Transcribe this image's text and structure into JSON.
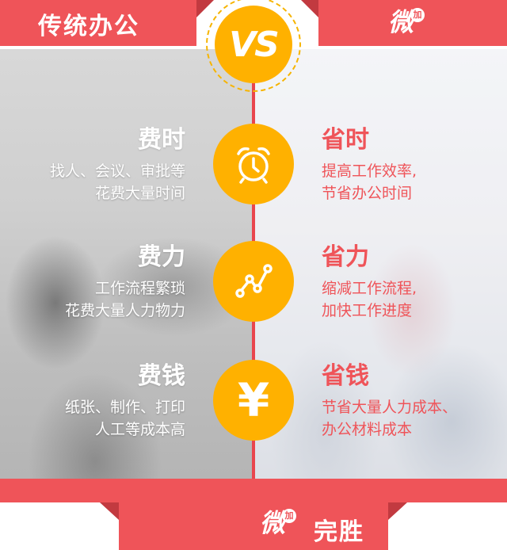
{
  "header": {
    "left_title": "传统办公",
    "vs_text": "VS",
    "right_logo": {
      "main": "微",
      "badge": "加"
    }
  },
  "rows": [
    {
      "left": {
        "title": "费时",
        "lines": [
          "找人、会议、审批等",
          "花费大量时间"
        ]
      },
      "icon": "alarm-clock-icon",
      "right": {
        "title": "省时",
        "lines": [
          "提高工作效率,",
          "节省办公时间"
        ]
      }
    },
    {
      "left": {
        "title": "费力",
        "lines": [
          "工作流程繁琐",
          "花费大量人力物力"
        ]
      },
      "icon": "trend-line-icon",
      "right": {
        "title": "省力",
        "lines": [
          "缩减工作流程,",
          "加快工作进度"
        ]
      }
    },
    {
      "left": {
        "title": "费钱",
        "lines": [
          "纸张、制作、打印",
          "人工等成本高"
        ]
      },
      "icon": "yen-icon",
      "icon_text": "¥",
      "right": {
        "title": "省钱",
        "lines": [
          "节省大量人力成本、",
          "办公材料成本"
        ]
      }
    }
  ],
  "footer": {
    "logo": {
      "main": "微",
      "badge": "加"
    },
    "text": "完胜"
  },
  "colors": {
    "accent_red": "#ef5459",
    "dark_red": "#c23a40",
    "accent_yellow": "#ffb100"
  }
}
